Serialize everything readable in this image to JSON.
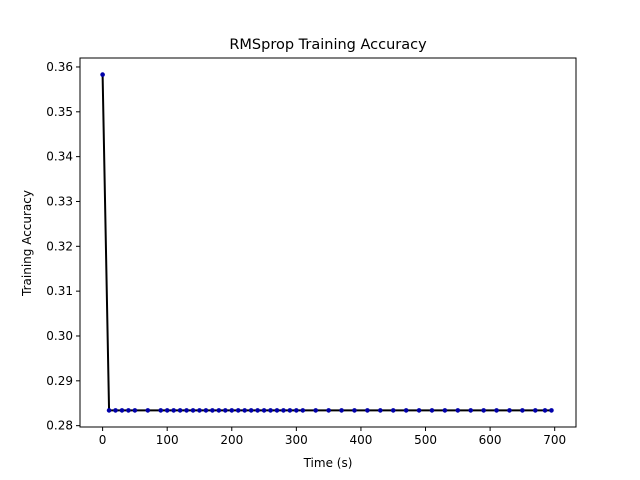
{
  "chart_data": {
    "type": "line",
    "title": "RMSprop Training Accuracy",
    "xlabel": "Time (s)",
    "ylabel": "Training Accuracy",
    "xlim": [
      -35,
      733
    ],
    "ylim": [
      0.2797,
      0.362
    ],
    "xticks": [
      0,
      100,
      200,
      300,
      400,
      500,
      600,
      700
    ],
    "yticks": [
      0.28,
      0.29,
      0.3,
      0.31,
      0.32,
      0.33,
      0.34,
      0.35,
      0.36
    ],
    "grid": false,
    "line_color": "#000000",
    "marker_color": "#0000aa",
    "series": [
      {
        "x": [
          0,
          10,
          20,
          30,
          40,
          50,
          70,
          90,
          100,
          110,
          120,
          130,
          140,
          150,
          160,
          170,
          180,
          190,
          200,
          210,
          220,
          230,
          240,
          250,
          260,
          270,
          280,
          290,
          300,
          310,
          330,
          350,
          370,
          390,
          410,
          430,
          450,
          470,
          490,
          510,
          530,
          550,
          570,
          590,
          610,
          630,
          650,
          670,
          685,
          695
        ],
        "y": [
          0.3583,
          0.2834,
          0.2834,
          0.2834,
          0.2834,
          0.2834,
          0.2834,
          0.2834,
          0.2834,
          0.2834,
          0.2834,
          0.2834,
          0.2834,
          0.2834,
          0.2834,
          0.2834,
          0.2834,
          0.2834,
          0.2834,
          0.2834,
          0.2834,
          0.2834,
          0.2834,
          0.2834,
          0.2834,
          0.2834,
          0.2834,
          0.2834,
          0.2834,
          0.2834,
          0.2834,
          0.2834,
          0.2834,
          0.2834,
          0.2834,
          0.2834,
          0.2834,
          0.2834,
          0.2834,
          0.2834,
          0.2834,
          0.2834,
          0.2834,
          0.2834,
          0.2834,
          0.2834,
          0.2834,
          0.2834,
          0.2834,
          0.2834
        ]
      }
    ]
  }
}
